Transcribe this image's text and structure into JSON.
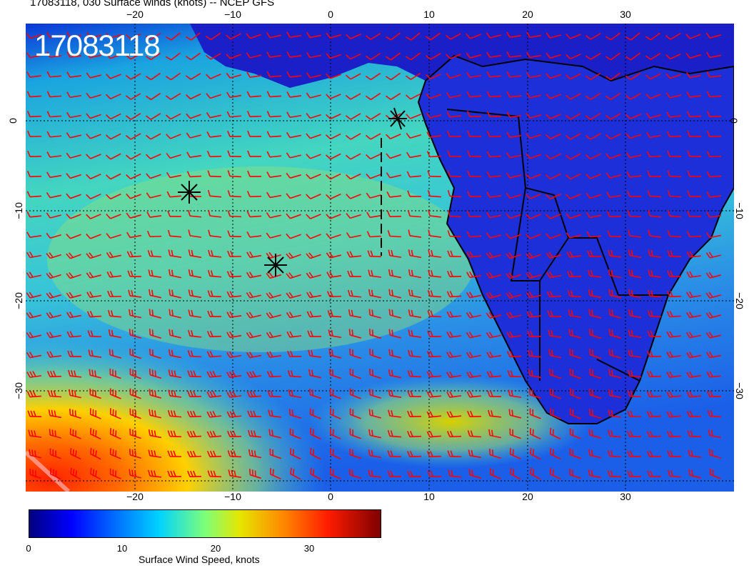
{
  "header": {
    "title": "17083118, 030 Surface winds (knots) -- NCEP GFS",
    "timestamp": "17083118"
  },
  "map": {
    "longitude_ticks": [
      "−20",
      "−10",
      "0",
      "10",
      "20",
      "30"
    ],
    "latitude_ticks": [
      "0",
      "−10",
      "−20",
      "−30"
    ],
    "gridline_color": "#000000",
    "barb_color": "#ff0000",
    "coastline_color": "#000000",
    "storm_markers": 3
  },
  "colorbar": {
    "label": "Surface Wind Speed, knots",
    "ticks": [
      "0",
      "10",
      "20",
      "30"
    ],
    "colors": [
      "#00007f",
      "#0000ff",
      "#0072ff",
      "#00d3ff",
      "#7dff7a",
      "#e6e600",
      "#ff8a00",
      "#ff1c00",
      "#7f0000"
    ]
  }
}
